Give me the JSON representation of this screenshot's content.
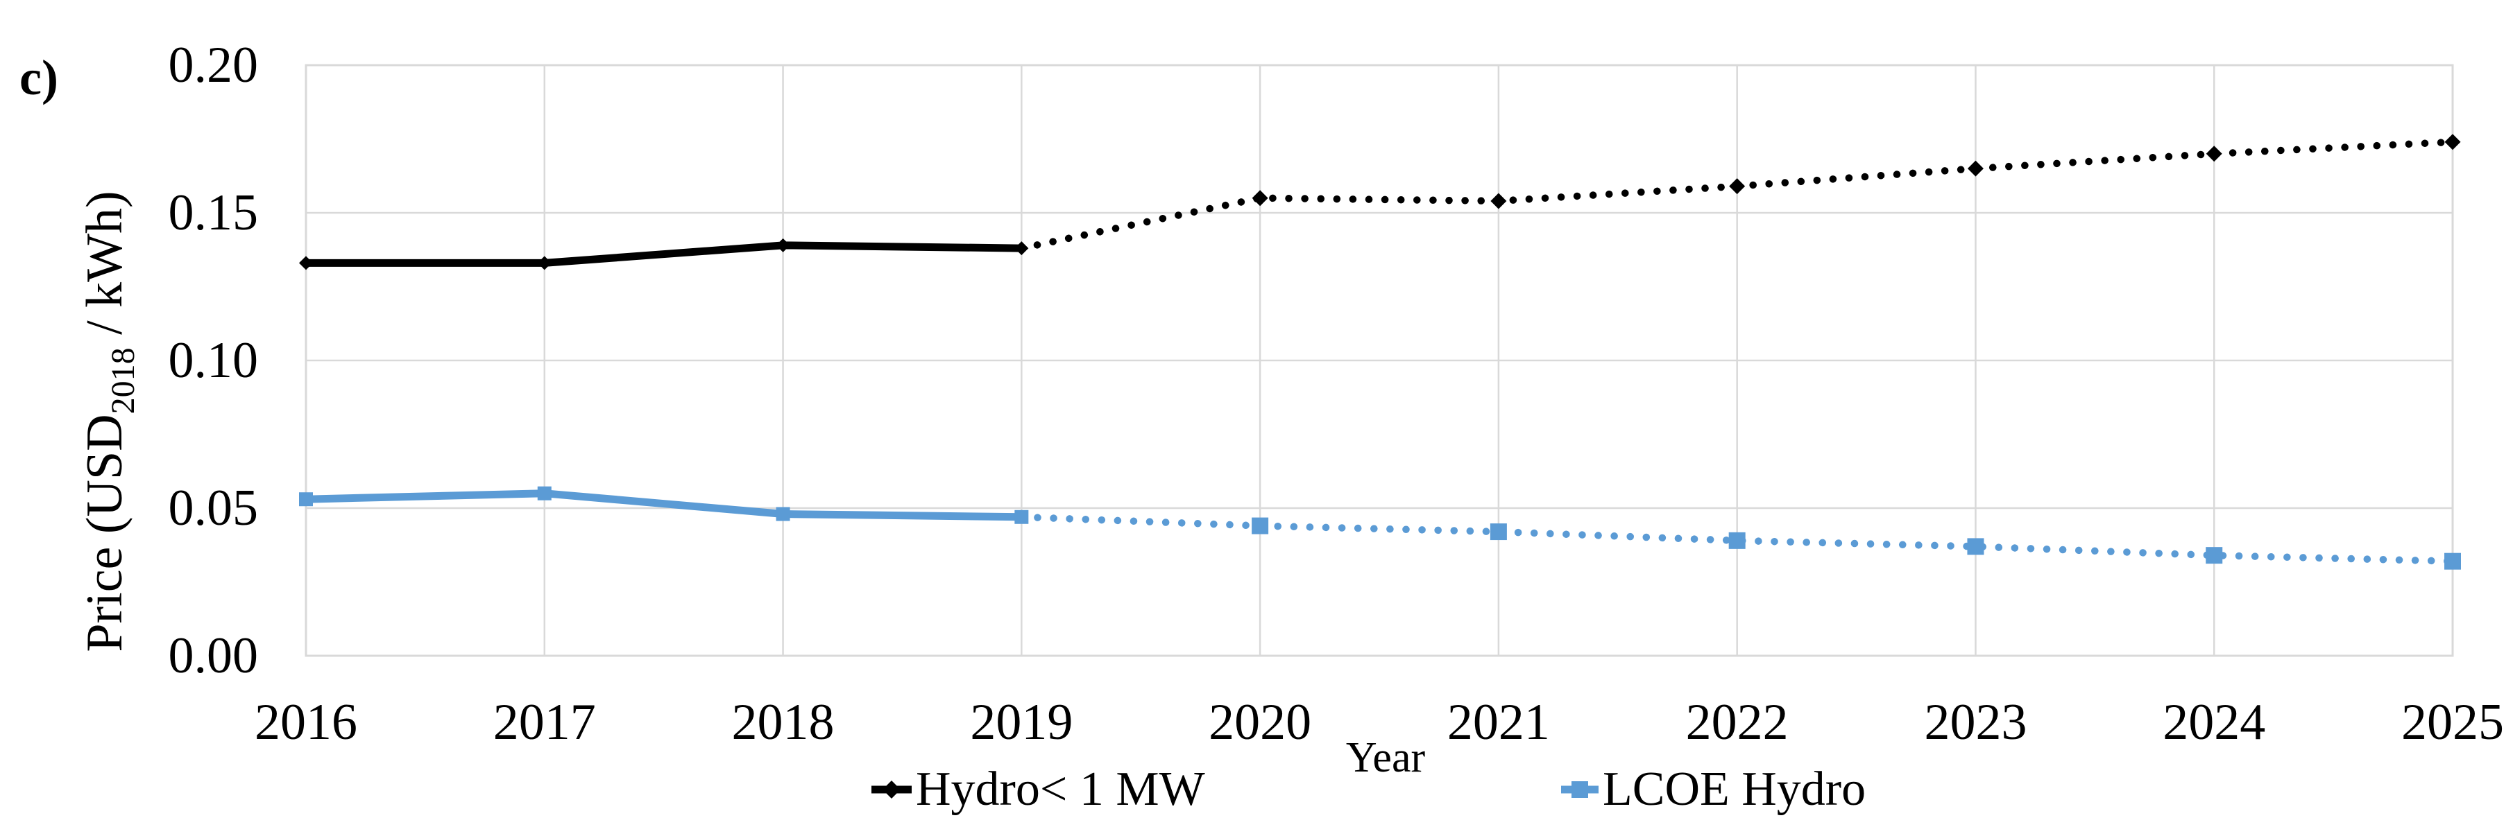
{
  "figure_label": "c)",
  "axes": {
    "y_title": {
      "prefix": "Price (USD",
      "subscript": "2018",
      "suffix": " / kWh)"
    },
    "x_title": "Year",
    "y_ticks": [
      {
        "label": "0.20",
        "value": 0.2
      },
      {
        "label": "0.15",
        "value": 0.15
      },
      {
        "label": "0.10",
        "value": 0.1
      },
      {
        "label": "0.05",
        "value": 0.05
      },
      {
        "label": "0.00",
        "value": 0.0
      }
    ],
    "x_ticks": [
      "2016",
      "2017",
      "2018",
      "2019",
      "2020",
      "2021",
      "2022",
      "2023",
      "2024",
      "2025"
    ]
  },
  "legend": {
    "items": [
      {
        "label": "Hydro< 1 MW",
        "color": "#000000",
        "marker": "diamond"
      },
      {
        "label": "LCOE Hydro",
        "color": "#5B9BD5",
        "marker": "square"
      }
    ]
  },
  "colors": {
    "grid": "#D9D9D9",
    "plot_border": "#D9D9D9",
    "text": "#000000",
    "hydro_series": "#000000",
    "lcoe_series": "#5B9BD5"
  },
  "chart_data": {
    "type": "line",
    "title": "",
    "x": [
      2016,
      2017,
      2018,
      2019,
      2020,
      2021,
      2022,
      2023,
      2024,
      2025
    ],
    "xlabel": "Year",
    "ylabel": "Price (USD2018 / kWh)",
    "ylim": [
      0,
      0.2
    ],
    "y_tick_step": 0.05,
    "grid": true,
    "legend_position": "bottom",
    "solid_until_x": 2019,
    "note": "Lines are solid 2016-2019 (historical) and dotted 2019-2025 (projection)",
    "series": [
      {
        "name": "Hydro< 1 MW",
        "color": "#000000",
        "marker": "diamond",
        "values": [
          0.133,
          0.133,
          0.139,
          0.138,
          0.155,
          0.154,
          0.159,
          0.165,
          0.17,
          0.174
        ]
      },
      {
        "name": "LCOE Hydro",
        "color": "#5B9BD5",
        "marker": "square",
        "values": [
          0.053,
          0.055,
          0.048,
          0.047,
          0.044,
          0.042,
          0.039,
          0.037,
          0.034,
          0.032
        ]
      }
    ]
  }
}
